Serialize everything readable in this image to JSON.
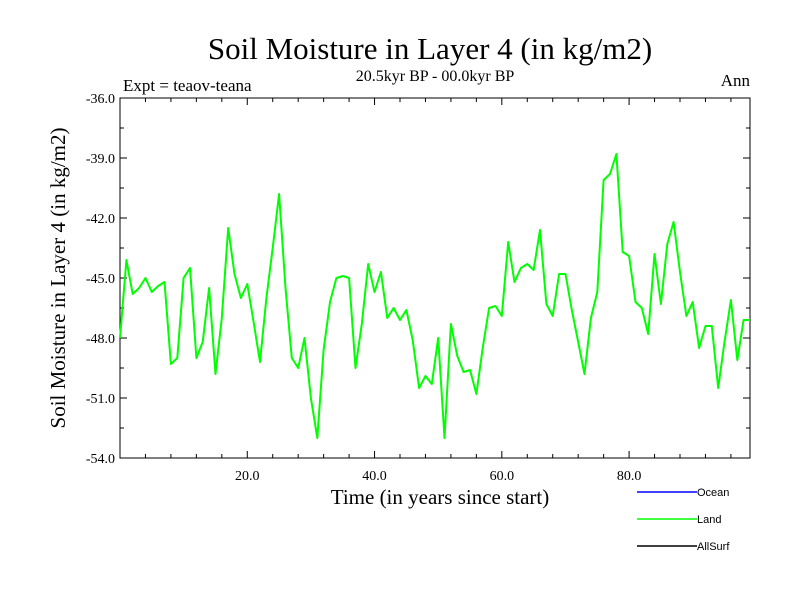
{
  "chart_data": {
    "type": "line",
    "title": "Soil Moisture in Layer 4 (in kg/m2)",
    "subtitle": "20.5kyr BP - 00.0kyr BP",
    "left_annotation": "Expt = teaov-teana",
    "right_annotation": "Ann",
    "xlabel": "Time (in years since start)",
    "ylabel": "Soil Moisture in Layer 4 (in kg/m2)",
    "xlim": [
      0,
      99
    ],
    "ylim": [
      -54.0,
      -36.0
    ],
    "x_ticks": [
      20,
      40,
      60,
      80
    ],
    "x_tick_labels": [
      "20.0",
      "40.0",
      "60.0",
      "80.0"
    ],
    "y_ticks": [
      -36,
      -39,
      -42,
      -45,
      -48,
      -51,
      -54
    ],
    "y_tick_labels": [
      "-36.0",
      "-39.0",
      "-42.0",
      "-45.0",
      "-48.0",
      "-51.0",
      "-54.0"
    ],
    "legend": {
      "placement": "bottom-right",
      "entries": [
        {
          "name": "Ocean",
          "color": "#0000ff"
        },
        {
          "name": "Land",
          "color": "#00ff00"
        },
        {
          "name": "AllSurf",
          "color": "#000000"
        }
      ]
    },
    "series": [
      {
        "name": "Land",
        "color": "#00ff00",
        "x": [
          0,
          1,
          2,
          3,
          4,
          5,
          6,
          7,
          8,
          9,
          10,
          11,
          12,
          13,
          14,
          15,
          16,
          17,
          18,
          19,
          20,
          21,
          22,
          23,
          24,
          25,
          26,
          27,
          28,
          29,
          30,
          31,
          32,
          33,
          34,
          35,
          36,
          37,
          38,
          39,
          40,
          41,
          42,
          43,
          44,
          45,
          46,
          47,
          48,
          49,
          50,
          51,
          52,
          53,
          54,
          55,
          56,
          57,
          58,
          59,
          60,
          61,
          62,
          63,
          64,
          65,
          66,
          67,
          68,
          69,
          70,
          71,
          72,
          73,
          74,
          75,
          76,
          77,
          78,
          79,
          80,
          81,
          82,
          83,
          84,
          85,
          86,
          87,
          88,
          89,
          90,
          91,
          92,
          93,
          94,
          95,
          96,
          97,
          98,
          99
        ],
        "y": [
          -48.0,
          -44.1,
          -45.8,
          -45.5,
          -45.0,
          -45.7,
          -45.4,
          -45.2,
          -49.3,
          -49.0,
          -45.0,
          -44.5,
          -49.0,
          -48.2,
          -45.5,
          -49.8,
          -47.0,
          -42.5,
          -44.8,
          -46.0,
          -45.3,
          -47.2,
          -49.2,
          -46.0,
          -43.5,
          -40.8,
          -45.5,
          -49.0,
          -49.5,
          -48.0,
          -51.0,
          -53.0,
          -48.6,
          -46.2,
          -45.0,
          -44.9,
          -45.0,
          -49.5,
          -47.3,
          -44.3,
          -45.7,
          -44.7,
          -47.0,
          -46.5,
          -47.1,
          -46.6,
          -48.1,
          -50.5,
          -49.9,
          -50.3,
          -48.0,
          -53.0,
          -47.3,
          -48.9,
          -49.7,
          -49.6,
          -50.8,
          -48.5,
          -46.5,
          -46.4,
          -46.9,
          -43.2,
          -45.2,
          -44.5,
          -44.3,
          -44.6,
          -42.6,
          -46.3,
          -46.9,
          -44.8,
          -44.8,
          -46.6,
          -48.2,
          -49.8,
          -47.0,
          -45.7,
          -40.1,
          -39.8,
          -38.8,
          -43.7,
          -43.9,
          -46.2,
          -46.5,
          -47.8,
          -43.8,
          -46.3,
          -43.3,
          -42.2,
          -44.7,
          -46.9,
          -46.2,
          -48.5,
          -47.4,
          -47.4,
          -50.5,
          -48.2,
          -46.1,
          -49.1,
          -47.1,
          -47.1
        ]
      }
    ]
  }
}
